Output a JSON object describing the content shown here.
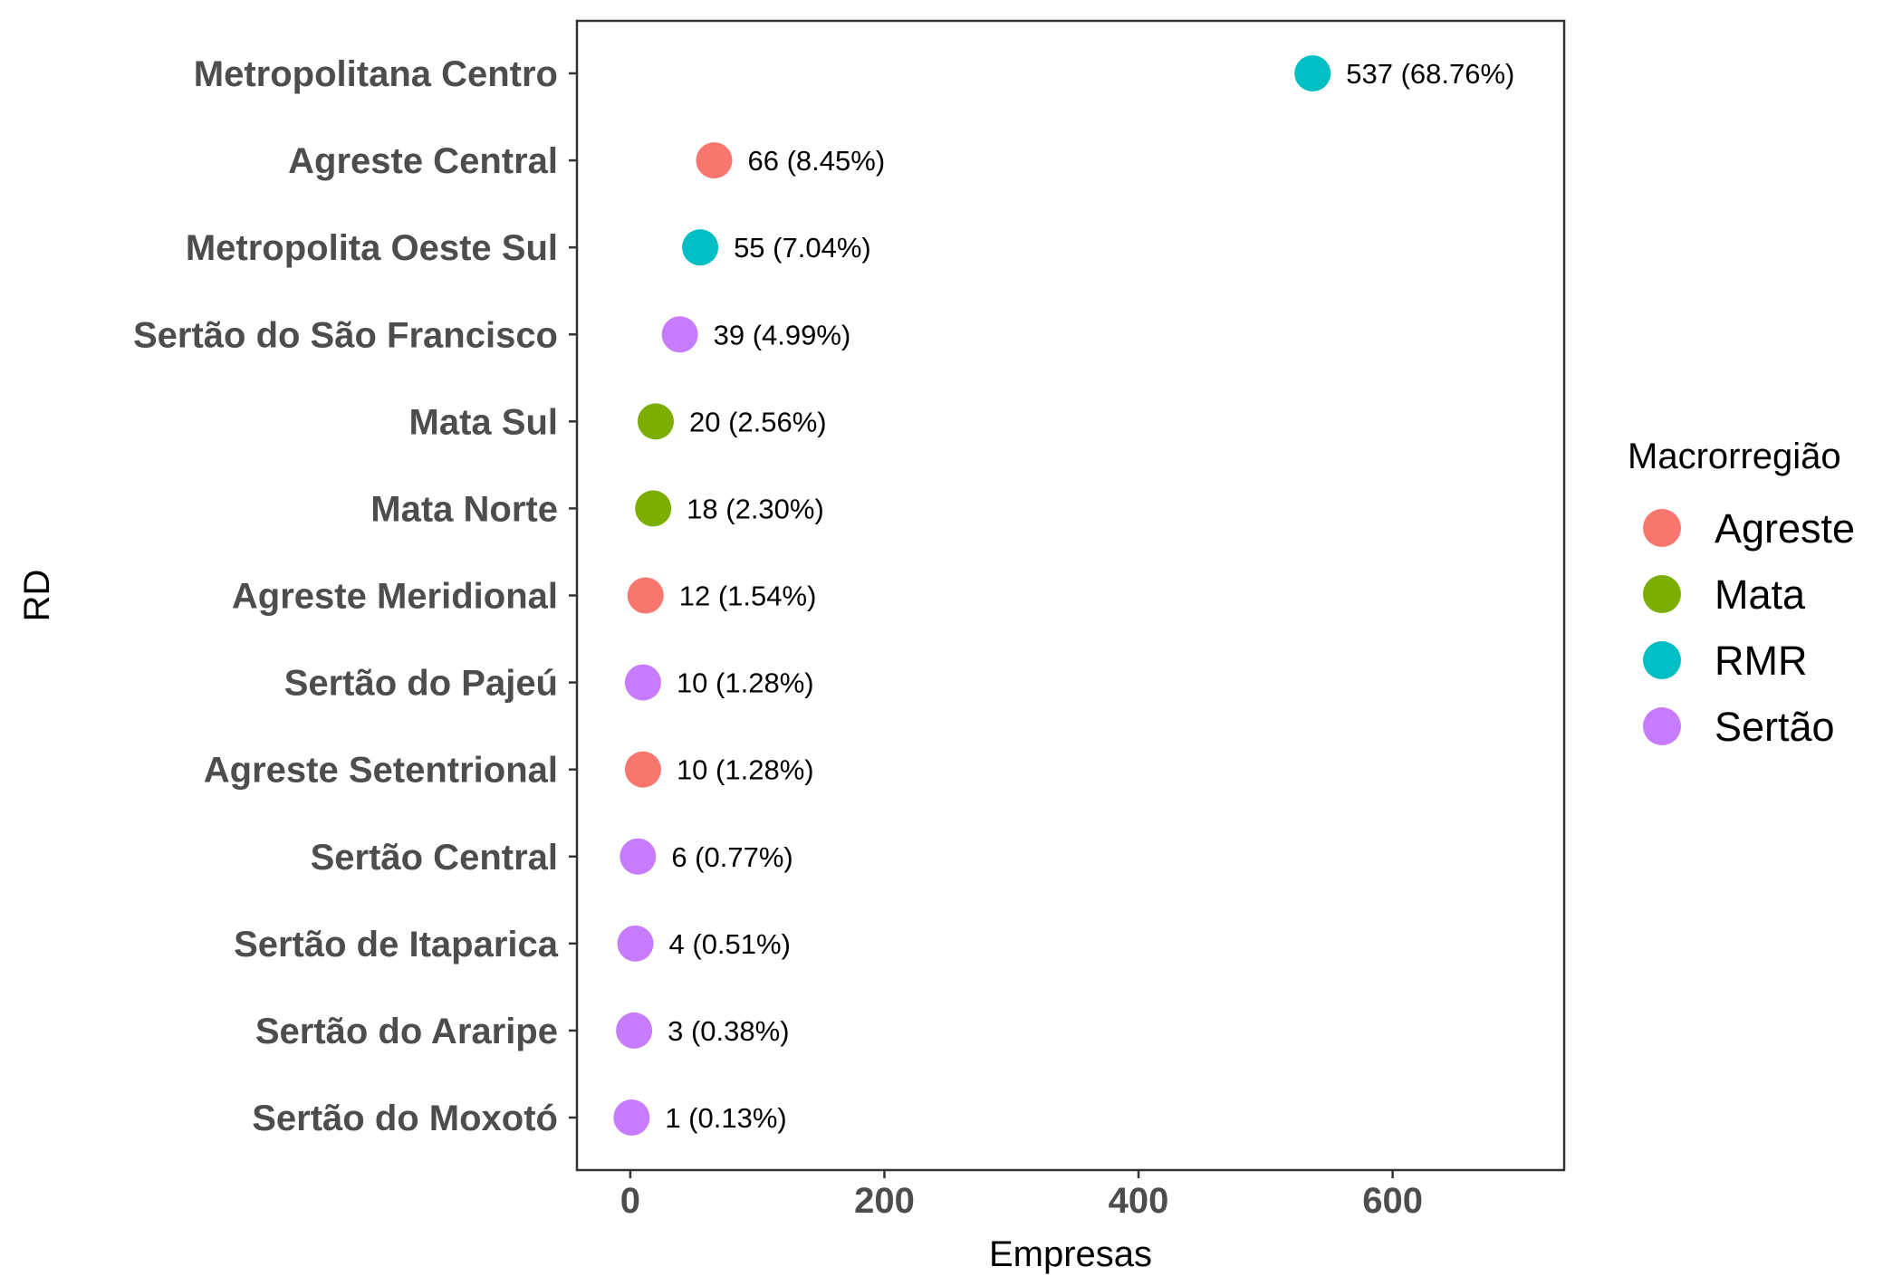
{
  "chart_data": {
    "type": "scatter",
    "orientation": "horizontal",
    "xlabel": "Empresas",
    "ylabel": "RD",
    "xlim": [
      -42,
      735
    ],
    "xticks": [
      0,
      200,
      400,
      600
    ],
    "grid": false,
    "legend": {
      "title": "Macrorregião",
      "placement": "right",
      "entries": [
        {
          "name": "Agreste",
          "color": "#F8766D"
        },
        {
          "name": "Mata",
          "color": "#7CAE00"
        },
        {
          "name": "RMR",
          "color": "#00BFC4"
        },
        {
          "name": "Sertão",
          "color": "#C77CFF"
        }
      ]
    },
    "points": [
      {
        "category": "Metropolitana Centro",
        "value": 537,
        "label": "537 (68.76%)",
        "group": "RMR"
      },
      {
        "category": "Agreste Central",
        "value": 66,
        "label": "66 (8.45%)",
        "group": "Agreste"
      },
      {
        "category": "Metropolita Oeste Sul",
        "value": 55,
        "label": "55 (7.04%)",
        "group": "RMR"
      },
      {
        "category": "Sertão do São Francisco",
        "value": 39,
        "label": "39 (4.99%)",
        "group": "Sertão"
      },
      {
        "category": "Mata Sul",
        "value": 20,
        "label": "20 (2.56%)",
        "group": "Mata"
      },
      {
        "category": "Mata Norte",
        "value": 18,
        "label": "18 (2.30%)",
        "group": "Mata"
      },
      {
        "category": "Agreste Meridional",
        "value": 12,
        "label": "12 (1.54%)",
        "group": "Agreste"
      },
      {
        "category": "Sertão do Pajeú",
        "value": 10,
        "label": "10 (1.28%)",
        "group": "Sertão"
      },
      {
        "category": "Agreste Setentrional",
        "value": 10,
        "label": "10 (1.28%)",
        "group": "Agreste"
      },
      {
        "category": "Sertão Central",
        "value": 6,
        "label": "6 (0.77%)",
        "group": "Sertão"
      },
      {
        "category": "Sertão de Itaparica",
        "value": 4,
        "label": "4 (0.51%)",
        "group": "Sertão"
      },
      {
        "category": "Sertão do Araripe",
        "value": 3,
        "label": "3 (0.38%)",
        "group": "Sertão"
      },
      {
        "category": "Sertão do Moxotó",
        "value": 1,
        "label": "1 (0.13%)",
        "group": "Sertão"
      }
    ]
  }
}
